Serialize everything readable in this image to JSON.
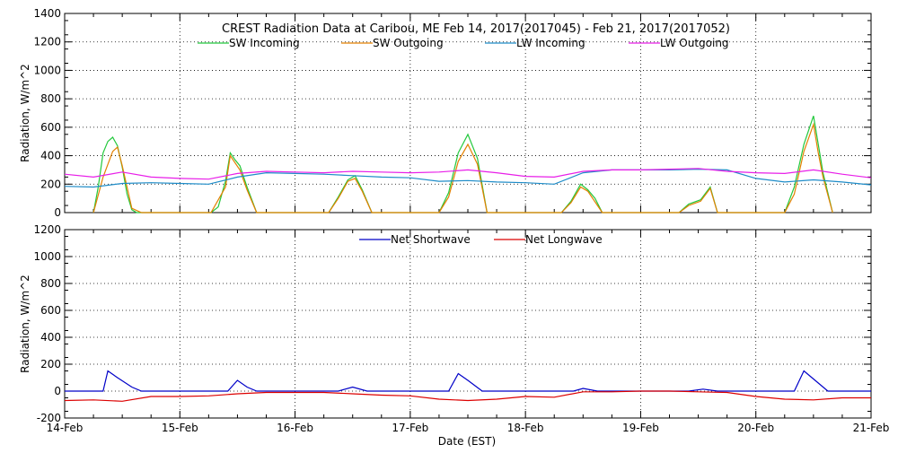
{
  "chart_data": [
    {
      "type": "line",
      "title": "CREST Radiation Data at Caribou, ME   Feb 14, 2017(2017045) - Feb 21, 2017(2017052)",
      "xlabel": "",
      "ylabel": "Radiation, W/m^2",
      "xlim": [
        "2017-02-14",
        "2017-02-21"
      ],
      "ylim": [
        0,
        1400
      ],
      "yticks": [
        0,
        200,
        400,
        600,
        800,
        1000,
        1200,
        1400
      ],
      "grid": true,
      "legend": "top",
      "series": [
        {
          "name": "SW Incoming",
          "color": "#22c83c",
          "x": [
            "2017-02-14 06:00",
            "2017-02-14 07:00",
            "2017-02-14 08:00",
            "2017-02-14 09:00",
            "2017-02-14 10:00",
            "2017-02-14 11:00",
            "2017-02-14 12:00",
            "2017-02-14 13:00",
            "2017-02-14 14:00",
            "2017-02-14 15:00",
            "2017-02-14 16:00",
            "2017-02-15 06:30",
            "2017-02-15 08:00",
            "2017-02-15 09:30",
            "2017-02-15 10:30",
            "2017-02-15 11:30",
            "2017-02-15 12:30",
            "2017-02-15 14:00",
            "2017-02-15 16:00",
            "2017-02-16 07:00",
            "2017-02-16 09:00",
            "2017-02-16 11:00",
            "2017-02-16 12:30",
            "2017-02-16 14:00",
            "2017-02-16 16:00",
            "2017-02-17 06:00",
            "2017-02-17 08:00",
            "2017-02-17 10:00",
            "2017-02-17 12:00",
            "2017-02-17 14:00",
            "2017-02-17 16:00",
            "2017-02-18 07:30",
            "2017-02-18 09:30",
            "2017-02-18 11:30",
            "2017-02-18 13:00",
            "2017-02-18 14:30",
            "2017-02-18 16:00",
            "2017-02-19 08:00",
            "2017-02-19 10:00",
            "2017-02-19 12:30",
            "2017-02-19 14:30",
            "2017-02-19 16:00",
            "2017-02-20 06:00",
            "2017-02-20 08:00",
            "2017-02-20 10:00",
            "2017-02-20 12:00",
            "2017-02-20 13:00",
            "2017-02-20 14:00",
            "2017-02-20 16:00"
          ],
          "y": [
            0,
            180,
            420,
            500,
            530,
            470,
            320,
            130,
            20,
            0,
            0,
            0,
            40,
            220,
            420,
            370,
            330,
            180,
            0,
            0,
            110,
            230,
            260,
            160,
            0,
            0,
            140,
            420,
            550,
            380,
            0,
            0,
            80,
            200,
            160,
            100,
            0,
            0,
            60,
            90,
            180,
            0,
            0,
            180,
            480,
            680,
            480,
            280,
            0
          ]
        },
        {
          "name": "SW Outgoing",
          "color": "#e38000",
          "x": [
            "2017-02-14 06:00",
            "2017-02-14 08:00",
            "2017-02-14 10:00",
            "2017-02-14 11:00",
            "2017-02-14 12:00",
            "2017-02-14 14:00",
            "2017-02-14 16:00",
            "2017-02-15 06:30",
            "2017-02-15 09:30",
            "2017-02-15 10:30",
            "2017-02-15 12:30",
            "2017-02-15 14:00",
            "2017-02-15 16:00",
            "2017-02-16 07:00",
            "2017-02-16 09:00",
            "2017-02-16 11:00",
            "2017-02-16 12:30",
            "2017-02-16 14:00",
            "2017-02-16 16:00",
            "2017-02-17 06:00",
            "2017-02-17 08:00",
            "2017-02-17 10:00",
            "2017-02-17 12:00",
            "2017-02-17 14:00",
            "2017-02-17 16:00",
            "2017-02-18 07:30",
            "2017-02-18 09:30",
            "2017-02-18 11:30",
            "2017-02-18 13:00",
            "2017-02-18 16:00",
            "2017-02-19 08:00",
            "2017-02-19 10:00",
            "2017-02-19 12:30",
            "2017-02-19 14:30",
            "2017-02-19 16:00",
            "2017-02-20 06:00",
            "2017-02-20 08:00",
            "2017-02-20 10:00",
            "2017-02-20 12:00",
            "2017-02-20 13:00",
            "2017-02-20 14:00",
            "2017-02-20 16:00"
          ],
          "y": [
            0,
            250,
            430,
            460,
            330,
            30,
            0,
            0,
            180,
            400,
            300,
            160,
            0,
            0,
            100,
            220,
            240,
            150,
            0,
            0,
            110,
            360,
            480,
            340,
            0,
            0,
            70,
            180,
            150,
            0,
            0,
            50,
            80,
            170,
            0,
            0,
            130,
            430,
            620,
            420,
            250,
            0
          ]
        },
        {
          "name": "LW Incoming",
          "color": "#1e8cc8",
          "x": [
            "2017-02-14",
            "2017-02-14 06:00",
            "2017-02-14 12:00",
            "2017-02-14 18:00",
            "2017-02-15",
            "2017-02-15 06:00",
            "2017-02-15 12:00",
            "2017-02-15 18:00",
            "2017-02-16",
            "2017-02-16 06:00",
            "2017-02-16 12:00",
            "2017-02-16 18:00",
            "2017-02-17",
            "2017-02-17 06:00",
            "2017-02-17 12:00",
            "2017-02-17 18:00",
            "2017-02-18",
            "2017-02-18 06:00",
            "2017-02-18 12:00",
            "2017-02-18 18:00",
            "2017-02-19",
            "2017-02-19 06:00",
            "2017-02-19 12:00",
            "2017-02-19 18:00",
            "2017-02-20",
            "2017-02-20 06:00",
            "2017-02-20 12:00",
            "2017-02-20 18:00",
            "2017-02-21"
          ],
          "y": [
            185,
            180,
            205,
            210,
            205,
            200,
            250,
            280,
            275,
            270,
            260,
            250,
            245,
            220,
            225,
            215,
            210,
            200,
            280,
            300,
            300,
            300,
            305,
            300,
            240,
            215,
            230,
            215,
            195
          ]
        },
        {
          "name": "LW Outgoing",
          "color": "#e81ee8",
          "x": [
            "2017-02-14",
            "2017-02-14 06:00",
            "2017-02-14 12:00",
            "2017-02-14 18:00",
            "2017-02-15",
            "2017-02-15 06:00",
            "2017-02-15 12:00",
            "2017-02-15 18:00",
            "2017-02-16",
            "2017-02-16 06:00",
            "2017-02-16 12:00",
            "2017-02-16 18:00",
            "2017-02-17",
            "2017-02-17 06:00",
            "2017-02-17 12:00",
            "2017-02-17 18:00",
            "2017-02-18",
            "2017-02-18 06:00",
            "2017-02-18 12:00",
            "2017-02-18 18:00",
            "2017-02-19",
            "2017-02-19 06:00",
            "2017-02-19 12:00",
            "2017-02-19 18:00",
            "2017-02-20",
            "2017-02-20 06:00",
            "2017-02-20 12:00",
            "2017-02-20 18:00",
            "2017-02-21"
          ],
          "y": [
            270,
            250,
            285,
            250,
            240,
            235,
            275,
            290,
            285,
            280,
            290,
            285,
            280,
            285,
            300,
            280,
            255,
            250,
            290,
            300,
            300,
            305,
            310,
            290,
            280,
            275,
            300,
            270,
            245
          ]
        }
      ]
    },
    {
      "type": "line",
      "title": "",
      "xlabel": "Date (EST)",
      "ylabel": "Radiation, W/m^2",
      "xlim": [
        "2017-02-14",
        "2017-02-21"
      ],
      "ylim": [
        -200,
        1200
      ],
      "yticks": [
        -200,
        0,
        200,
        400,
        600,
        800,
        1000,
        1200
      ],
      "xticks": [
        "14-Feb",
        "15-Feb",
        "16-Feb",
        "17-Feb",
        "18-Feb",
        "19-Feb",
        "20-Feb",
        "21-Feb"
      ],
      "grid": true,
      "legend": "top",
      "series": [
        {
          "name": "Net Shortwave",
          "color": "#0000c8",
          "x": [
            "2017-02-14",
            "2017-02-14 08:00",
            "2017-02-14 09:00",
            "2017-02-14 11:00",
            "2017-02-14 14:00",
            "2017-02-14 16:00",
            "2017-02-15 10:00",
            "2017-02-15 12:00",
            "2017-02-15 14:00",
            "2017-02-15 16:00",
            "2017-02-16 09:00",
            "2017-02-16 12:00",
            "2017-02-16 15:00",
            "2017-02-17 08:00",
            "2017-02-17 10:00",
            "2017-02-17 12:00",
            "2017-02-17 15:00",
            "2017-02-18 10:00",
            "2017-02-18 12:00",
            "2017-02-18 15:00",
            "2017-02-19 10:00",
            "2017-02-19 13:00",
            "2017-02-19 16:00",
            "2017-02-20 08:00",
            "2017-02-20 10:00",
            "2017-02-20 12:00",
            "2017-02-20 15:00",
            "2017-02-21"
          ],
          "y": [
            0,
            0,
            150,
            100,
            30,
            0,
            0,
            80,
            30,
            0,
            0,
            30,
            0,
            0,
            130,
            80,
            0,
            0,
            20,
            0,
            0,
            15,
            0,
            0,
            150,
            90,
            0,
            0
          ]
        },
        {
          "name": "Net Longwave",
          "color": "#dc0000",
          "x": [
            "2017-02-14",
            "2017-02-14 06:00",
            "2017-02-14 12:00",
            "2017-02-14 18:00",
            "2017-02-15",
            "2017-02-15 06:00",
            "2017-02-15 12:00",
            "2017-02-15 18:00",
            "2017-02-16",
            "2017-02-16 06:00",
            "2017-02-16 12:00",
            "2017-02-16 18:00",
            "2017-02-17",
            "2017-02-17 06:00",
            "2017-02-17 12:00",
            "2017-02-17 18:00",
            "2017-02-18",
            "2017-02-18 06:00",
            "2017-02-18 12:00",
            "2017-02-18 18:00",
            "2017-02-19",
            "2017-02-19 06:00",
            "2017-02-19 12:00",
            "2017-02-19 18:00",
            "2017-02-20",
            "2017-02-20 06:00",
            "2017-02-20 12:00",
            "2017-02-20 18:00",
            "2017-02-21"
          ],
          "y": [
            -70,
            -65,
            -75,
            -40,
            -40,
            -35,
            -20,
            -10,
            -10,
            -10,
            -20,
            -30,
            -35,
            -60,
            -70,
            -60,
            -40,
            -45,
            -5,
            -5,
            0,
            0,
            -5,
            -10,
            -40,
            -60,
            -65,
            -50,
            -50
          ]
        }
      ]
    }
  ]
}
